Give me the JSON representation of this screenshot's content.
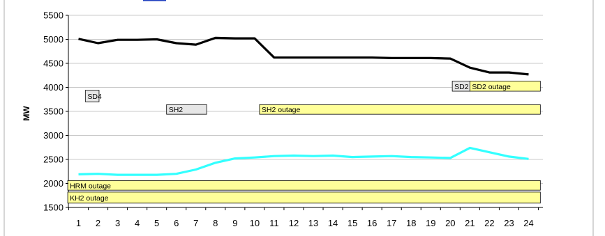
{
  "chart_data": {
    "type": "line",
    "title": "",
    "xlabel": "",
    "ylabel": "MW",
    "ylim": [
      1500,
      5500
    ],
    "y_ticks": [
      1500,
      2000,
      2500,
      3000,
      3500,
      4000,
      4500,
      5000,
      5500
    ],
    "categories": [
      "1",
      "2",
      "3",
      "4",
      "5",
      "6",
      "7",
      "8",
      "9",
      "10",
      "11",
      "12",
      "13",
      "14",
      "15",
      "16",
      "17",
      "18",
      "19",
      "20",
      "21",
      "22",
      "23",
      "24"
    ],
    "grid": "horizontal",
    "series": [
      {
        "color": "#000000",
        "values": [
          5010,
          4920,
          4990,
          4990,
          5000,
          4920,
          4890,
          5030,
          5020,
          5020,
          4620,
          4620,
          4620,
          4620,
          4620,
          4620,
          4610,
          4610,
          4610,
          4600,
          4410,
          4310,
          4310,
          4270
        ]
      },
      {
        "color": "#33FFFF",
        "values": [
          2190,
          2200,
          2180,
          2180,
          2180,
          2200,
          2290,
          2430,
          2520,
          2540,
          2570,
          2580,
          2570,
          2580,
          2550,
          2560,
          2570,
          2550,
          2540,
          2530,
          2740,
          2650,
          2560,
          2510
        ]
      }
    ],
    "annotations": [
      {
        "label": "SD4",
        "fill": "#e6e6e6",
        "x_start": 1.35,
        "x_end": 2.05,
        "y_low": 3700,
        "y_high": 3940
      },
      {
        "label": "SH2",
        "fill": "#e6e6e6",
        "x_start": 5.5,
        "x_end": 7.55,
        "y_low": 3440,
        "y_high": 3640
      },
      {
        "label": "SH2 outage",
        "fill": "#ffff99",
        "x_start": 10.25,
        "x_end": 24.6,
        "y_low": 3440,
        "y_high": 3640
      },
      {
        "label": "SD2",
        "fill": "#e6e6e6",
        "x_start": 20.1,
        "x_end": 21.0,
        "y_low": 3920,
        "y_high": 4130
      },
      {
        "label": "SD2 outage",
        "fill": "#ffff99",
        "x_start": 21.0,
        "x_end": 24.6,
        "y_low": 3920,
        "y_high": 4130
      },
      {
        "label": "HRM outage",
        "fill": "#ffff99",
        "x_start": 0.45,
        "x_end": 24.6,
        "y_low": 1860,
        "y_high": 2060
      },
      {
        "label": "KH2 outage",
        "fill": "#ffff99",
        "x_start": 0.45,
        "x_end": 24.6,
        "y_low": 1590,
        "y_high": 1820
      }
    ]
  }
}
